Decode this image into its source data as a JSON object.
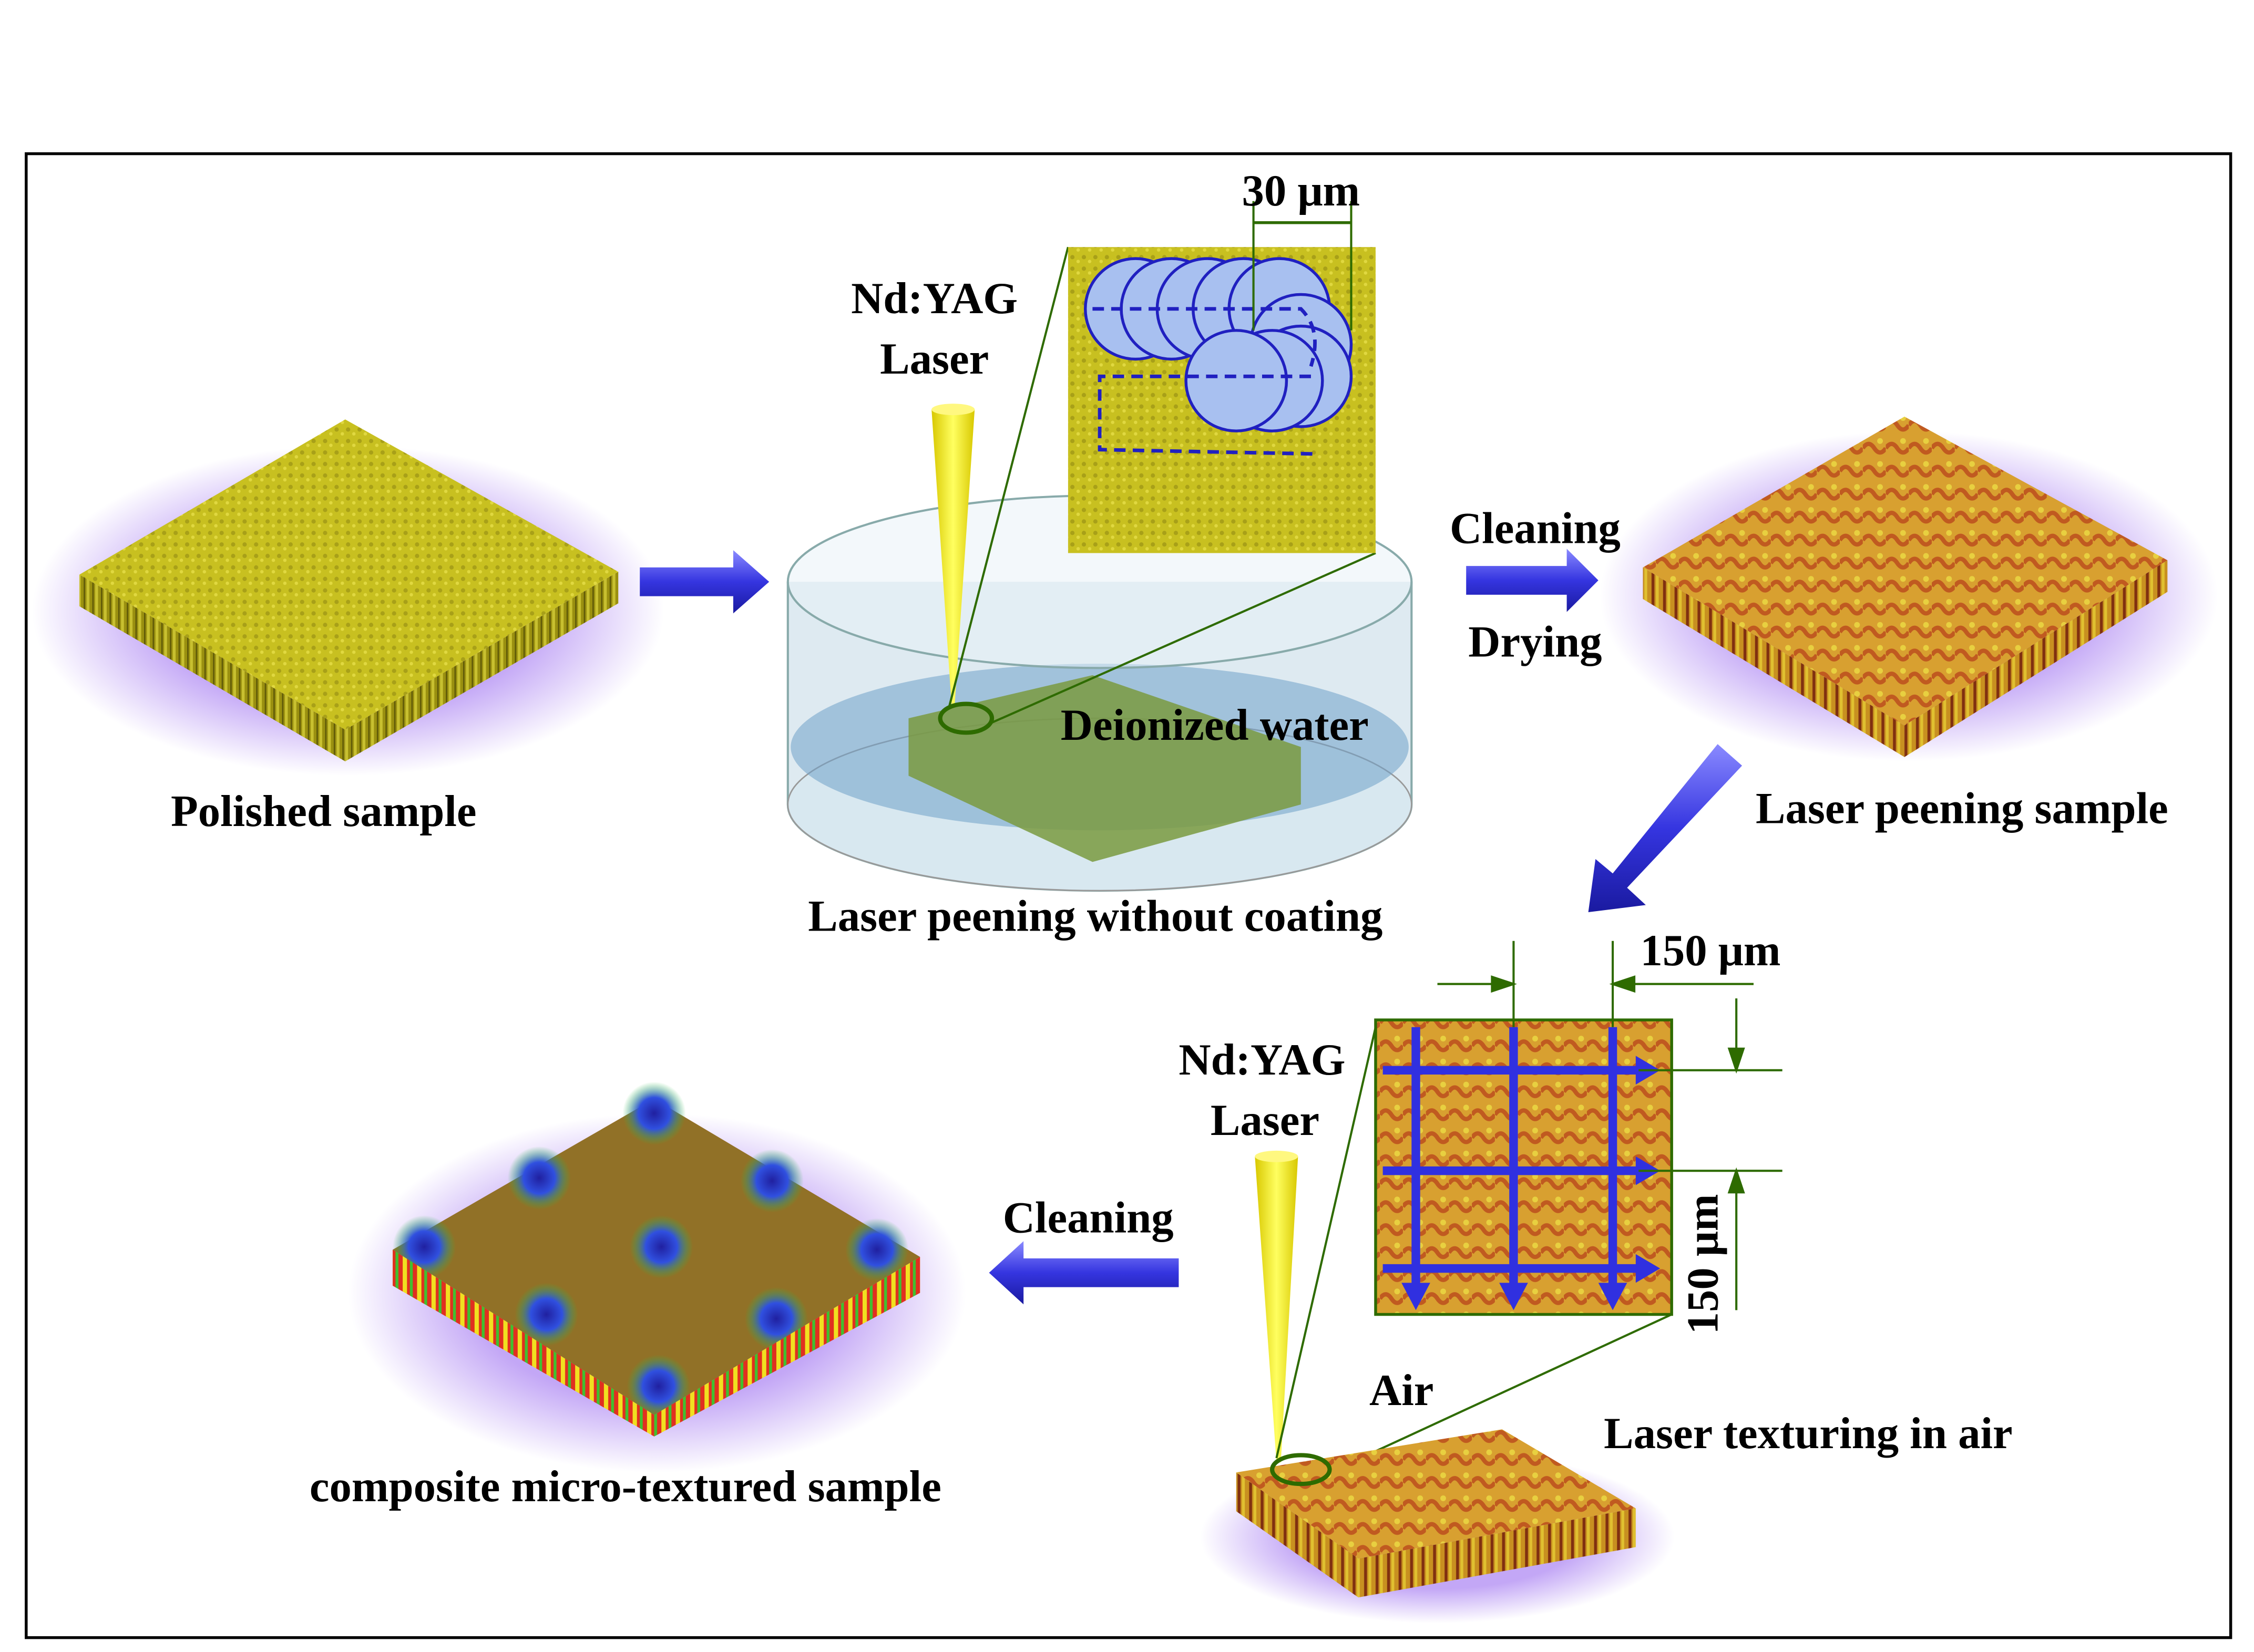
{
  "stages": {
    "polished": {
      "label": "Polished sample"
    },
    "peening_setup": {
      "laser_line1": "Nd:YAG",
      "laser_line2": "Laser",
      "spot_size": "30 μm",
      "medium": "Deionized water",
      "label": "Laser peening without coating"
    },
    "post_peening": {
      "step1": "Cleaning",
      "step2": "Drying"
    },
    "peened": {
      "label": "Laser peening sample"
    },
    "texturing_setup": {
      "laser_line1": "Nd:YAG",
      "laser_line2": "Laser",
      "spacing_x": "150 μm",
      "spacing_y": "150 μm",
      "medium": "Air",
      "label": "Laser texturing in air"
    },
    "post_texturing": {
      "step1": "Cleaning"
    },
    "final": {
      "label": "composite micro-textured sample"
    }
  },
  "colors": {
    "arrow": "#3a3ae0",
    "polished_surface": "#c8c020",
    "peened_surface": "#d08a30",
    "laser_beam": "#f5ee10",
    "dimension_lines": "#2e6b00",
    "glow": "#9b6cf0"
  }
}
